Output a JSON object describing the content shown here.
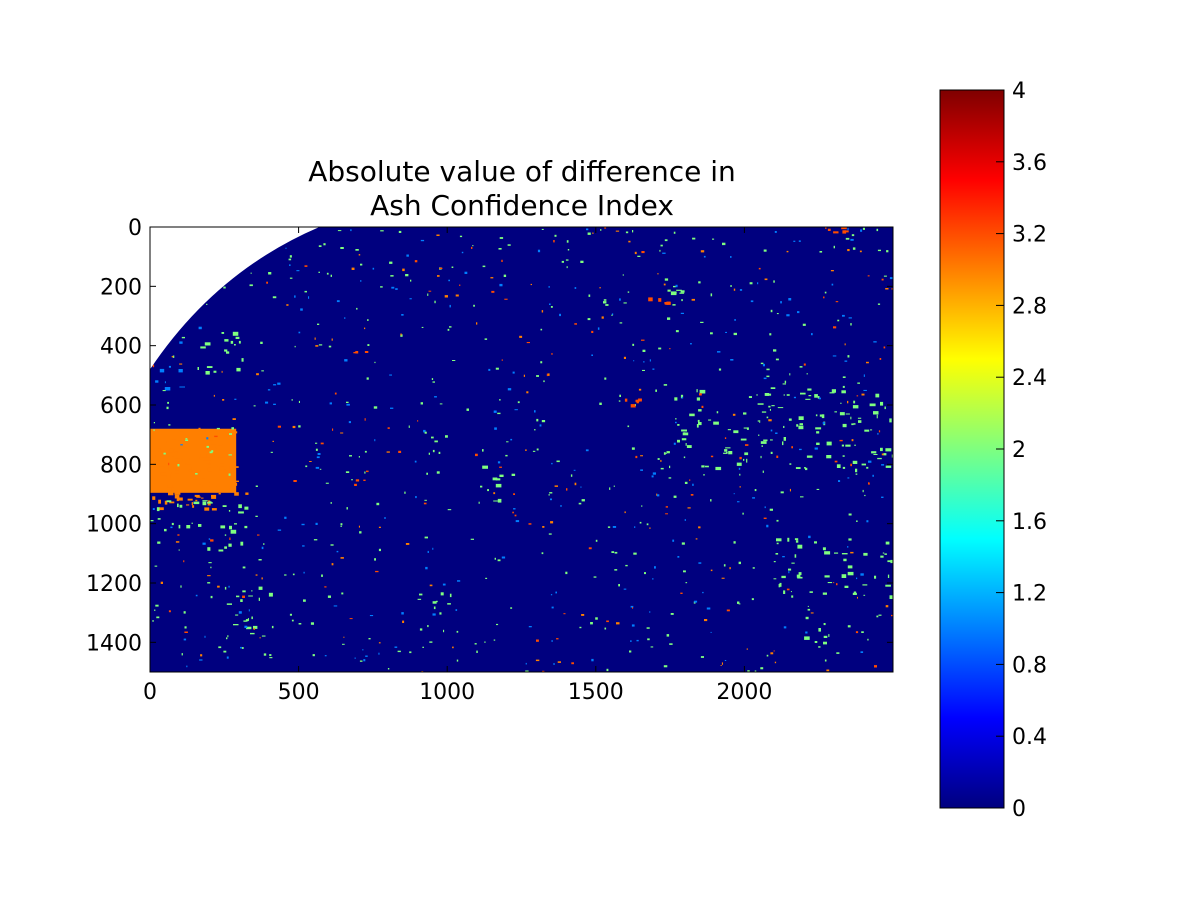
{
  "chart_data": {
    "type": "heatmap",
    "title_lines": [
      "Absolute value of difference in",
      "Ash Confidence Index"
    ],
    "x_axis": {
      "range": [
        0,
        2500
      ],
      "ticks": [
        0,
        500,
        1000,
        1500,
        2000
      ],
      "tick_labels": [
        "0",
        "500",
        "1000",
        "1500",
        "2000"
      ]
    },
    "y_axis": {
      "range": [
        0,
        1500
      ],
      "inverted": true,
      "ticks": [
        0,
        200,
        400,
        600,
        800,
        1000,
        1200,
        1400
      ],
      "tick_labels": [
        "0",
        "200",
        "400",
        "600",
        "800",
        "1000",
        "1200",
        "1400"
      ]
    },
    "colorbar": {
      "colormap": "jet",
      "range": [
        0,
        4
      ],
      "ticks": [
        0,
        0.4,
        0.8,
        1.2,
        1.6,
        2,
        2.4,
        2.8,
        3.2,
        3.6,
        4
      ],
      "tick_labels": [
        "0",
        "0.4",
        "0.8",
        "1.2",
        "1.6",
        "2",
        "2.4",
        "2.8",
        "3.2",
        "3.6",
        "4"
      ],
      "stops": [
        "#00007f",
        "#0000ff",
        "#007fff",
        "#00ffff",
        "#7fff7f",
        "#ffff00",
        "#ff7f00",
        "#ff0000",
        "#7f0000"
      ]
    },
    "background_value": 0,
    "earth_limb": {
      "description": "upper-left corner outside the disk is blank (no data)"
    },
    "regions": [
      {
        "value": 3,
        "x": [
          0,
          290
        ],
        "y": [
          680,
          950
        ]
      },
      {
        "value": 2,
        "x": [
          0,
          330
        ],
        "y": [
          920,
          1100
        ]
      },
      {
        "value": 2,
        "x": [
          130,
          330
        ],
        "y": [
          350,
          500
        ]
      },
      {
        "value": 1,
        "x": [
          0,
          100
        ],
        "y": [
          470,
          540
        ]
      },
      {
        "value": 3.2,
        "x": [
          1660,
          1740
        ],
        "y": [
          220,
          270
        ]
      },
      {
        "value": 2,
        "x": [
          1720,
          1960
        ],
        "y": [
          190,
          230
        ]
      },
      {
        "value": 3.2,
        "x": [
          2250,
          2340
        ],
        "y": [
          0,
          15
        ]
      },
      {
        "value": 2,
        "x": [
          1100,
          1180
        ],
        "y": [
          800,
          960
        ]
      },
      {
        "value": 2,
        "x": [
          900,
          1100
        ],
        "y": [
          1220,
          1290
        ]
      },
      {
        "value": 2,
        "x": [
          250,
          420
        ],
        "y": [
          1200,
          1400
        ]
      },
      {
        "value": 2,
        "x": [
          2100,
          2500
        ],
        "y": [
          1040,
          1250
        ]
      },
      {
        "value": 2,
        "x": [
          2200,
          2300
        ],
        "y": [
          1330,
          1420
        ]
      },
      {
        "value": 2,
        "x": [
          1700,
          2500
        ],
        "y": [
          540,
          820
        ]
      },
      {
        "value": 3.2,
        "x": [
          1580,
          1680
        ],
        "y": [
          570,
          600
        ]
      }
    ]
  }
}
